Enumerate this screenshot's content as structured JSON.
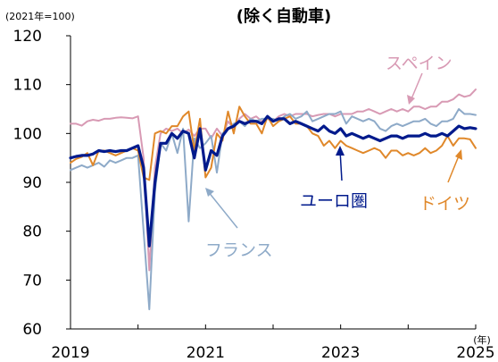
{
  "chart_data": {
    "type": "line",
    "title": "(除く自動車)",
    "unit_label": "(2021年=100)",
    "x_unit_label": "(年)",
    "x_ticks": [
      2019,
      2021,
      2023,
      2025
    ],
    "y_ticks": [
      60,
      70,
      80,
      90,
      100,
      110,
      120
    ],
    "xlim": [
      2019,
      2025
    ],
    "ylim": [
      60,
      120
    ],
    "grid": false,
    "series": [
      {
        "name": "スペイン",
        "color": "#d89ab4",
        "width": 2,
        "x": [
          2019.0,
          2019.083,
          2019.167,
          2019.25,
          2019.333,
          2019.417,
          2019.5,
          2019.583,
          2019.667,
          2019.75,
          2019.833,
          2019.917,
          2020.0,
          2020.083,
          2020.167,
          2020.25,
          2020.333,
          2020.417,
          2020.5,
          2020.583,
          2020.667,
          2020.75,
          2020.833,
          2020.917,
          2021.0,
          2021.083,
          2021.167,
          2021.25,
          2021.333,
          2021.417,
          2021.5,
          2021.583,
          2021.667,
          2021.75,
          2021.833,
          2021.917,
          2022.0,
          2022.083,
          2022.167,
          2022.25,
          2022.333,
          2022.417,
          2022.5,
          2022.583,
          2022.667,
          2022.75,
          2022.833,
          2022.917,
          2023.0,
          2023.083,
          2023.167,
          2023.25,
          2023.333,
          2023.417,
          2023.5,
          2023.583,
          2023.667,
          2023.75,
          2023.833,
          2023.917,
          2024.0,
          2024.083,
          2024.167,
          2024.25,
          2024.333,
          2024.417,
          2024.5,
          2024.583,
          2024.667,
          2024.75,
          2024.833,
          2024.917,
          2025.0
        ],
        "values": [
          102.0,
          102.0,
          101.6,
          102.5,
          102.8,
          102.6,
          103.0,
          103.0,
          103.2,
          103.3,
          103.2,
          103.1,
          103.5,
          95.0,
          72.0,
          93.0,
          100.0,
          101.0,
          100.5,
          101.0,
          100.0,
          100.8,
          99.5,
          101.0,
          101.0,
          99.0,
          101.0,
          99.5,
          102.5,
          101.0,
          103.0,
          104.0,
          103.0,
          103.5,
          102.5,
          103.0,
          102.5,
          103.5,
          104.0,
          103.5,
          104.0,
          104.0,
          104.0,
          103.5,
          103.8,
          104.0,
          104.0,
          103.5,
          104.0,
          104.0,
          104.0,
          104.5,
          104.5,
          105.0,
          104.5,
          104.0,
          104.5,
          105.0,
          104.5,
          105.0,
          104.5,
          105.5,
          105.5,
          105.0,
          105.5,
          105.5,
          106.5,
          106.5,
          107.0,
          108.0,
          107.5,
          107.8,
          109.0
        ]
      },
      {
        "name": "フランス",
        "color": "#8eaac8",
        "width": 2,
        "x": [
          2019.0,
          2019.083,
          2019.167,
          2019.25,
          2019.333,
          2019.417,
          2019.5,
          2019.583,
          2019.667,
          2019.75,
          2019.833,
          2019.917,
          2020.0,
          2020.083,
          2020.167,
          2020.25,
          2020.333,
          2020.417,
          2020.5,
          2020.583,
          2020.667,
          2020.75,
          2020.833,
          2020.917,
          2021.0,
          2021.083,
          2021.167,
          2021.25,
          2021.333,
          2021.417,
          2021.5,
          2021.583,
          2021.667,
          2021.75,
          2021.833,
          2021.917,
          2022.0,
          2022.083,
          2022.167,
          2022.25,
          2022.333,
          2022.417,
          2022.5,
          2022.583,
          2022.667,
          2022.75,
          2022.833,
          2022.917,
          2023.0,
          2023.083,
          2023.167,
          2023.25,
          2023.333,
          2023.417,
          2023.5,
          2023.583,
          2023.667,
          2023.75,
          2023.833,
          2023.917,
          2024.0,
          2024.083,
          2024.167,
          2024.25,
          2024.333,
          2024.417,
          2024.5,
          2024.583,
          2024.667,
          2024.75,
          2024.833,
          2024.917,
          2025.0
        ],
        "values": [
          92.5,
          93.0,
          93.5,
          93.0,
          93.5,
          94.0,
          93.2,
          94.5,
          94.0,
          94.5,
          95.0,
          95.0,
          95.5,
          80.0,
          64.0,
          88.0,
          98.0,
          96.5,
          100.0,
          96.0,
          101.0,
          82.0,
          99.0,
          97.0,
          98.0,
          99.5,
          92.0,
          100.0,
          101.0,
          102.0,
          102.5,
          101.5,
          103.0,
          102.5,
          103.0,
          103.0,
          103.0,
          102.5,
          103.5,
          104.0,
          103.0,
          103.5,
          104.5,
          102.5,
          103.0,
          103.5,
          104.0,
          104.0,
          104.5,
          102.0,
          103.5,
          103.0,
          102.5,
          103.0,
          102.5,
          101.0,
          100.5,
          101.5,
          102.0,
          101.5,
          102.0,
          102.5,
          102.5,
          103.0,
          102.0,
          101.5,
          102.5,
          102.5,
          103.0,
          105.0,
          104.0,
          104.0,
          103.8
        ]
      },
      {
        "name": "ドイツ",
        "color": "#e0882a",
        "width": 2,
        "x": [
          2019.0,
          2019.083,
          2019.167,
          2019.25,
          2019.333,
          2019.417,
          2019.5,
          2019.583,
          2019.667,
          2019.75,
          2019.833,
          2019.917,
          2020.0,
          2020.083,
          2020.167,
          2020.25,
          2020.333,
          2020.417,
          2020.5,
          2020.583,
          2020.667,
          2020.75,
          2020.833,
          2020.917,
          2021.0,
          2021.083,
          2021.167,
          2021.25,
          2021.333,
          2021.417,
          2021.5,
          2021.583,
          2021.667,
          2021.75,
          2021.833,
          2021.917,
          2022.0,
          2022.083,
          2022.167,
          2022.25,
          2022.333,
          2022.417,
          2022.5,
          2022.583,
          2022.667,
          2022.75,
          2022.833,
          2022.917,
          2023.0,
          2023.083,
          2023.167,
          2023.25,
          2023.333,
          2023.417,
          2023.5,
          2023.583,
          2023.667,
          2023.75,
          2023.833,
          2023.917,
          2024.0,
          2024.083,
          2024.167,
          2024.25,
          2024.333,
          2024.417,
          2024.5,
          2024.583,
          2024.667,
          2024.75,
          2024.833,
          2024.917,
          2025.0
        ],
        "values": [
          94.0,
          94.8,
          95.2,
          96.0,
          93.5,
          96.5,
          96.5,
          96.0,
          95.5,
          96.0,
          96.5,
          97.0,
          96.5,
          91.0,
          90.5,
          100.0,
          100.5,
          100.0,
          101.5,
          101.5,
          103.5,
          104.5,
          96.5,
          103.0,
          91.0,
          93.0,
          100.0,
          98.5,
          104.5,
          100.0,
          105.5,
          103.5,
          102.0,
          102.0,
          100.0,
          103.5,
          101.5,
          102.5,
          103.0,
          103.5,
          102.0,
          102.0,
          101.5,
          100.0,
          99.5,
          97.5,
          98.5,
          97.0,
          98.5,
          97.5,
          97.0,
          96.5,
          96.0,
          96.5,
          97.0,
          96.5,
          95.0,
          96.5,
          96.5,
          95.5,
          96.0,
          95.5,
          96.0,
          97.0,
          96.0,
          96.5,
          97.5,
          99.5,
          97.5,
          99.0,
          99.0,
          98.8,
          97.0
        ]
      },
      {
        "name": "ユーロ圏",
        "color": "#001a8c",
        "width": 3.2,
        "x": [
          2019.0,
          2019.083,
          2019.167,
          2019.25,
          2019.333,
          2019.417,
          2019.5,
          2019.583,
          2019.667,
          2019.75,
          2019.833,
          2019.917,
          2020.0,
          2020.083,
          2020.167,
          2020.25,
          2020.333,
          2020.417,
          2020.5,
          2020.583,
          2020.667,
          2020.75,
          2020.833,
          2020.917,
          2021.0,
          2021.083,
          2021.167,
          2021.25,
          2021.333,
          2021.417,
          2021.5,
          2021.583,
          2021.667,
          2021.75,
          2021.833,
          2021.917,
          2022.0,
          2022.083,
          2022.167,
          2022.25,
          2022.333,
          2022.417,
          2022.5,
          2022.583,
          2022.667,
          2022.75,
          2022.833,
          2022.917,
          2023.0,
          2023.083,
          2023.167,
          2023.25,
          2023.333,
          2023.417,
          2023.5,
          2023.583,
          2023.667,
          2023.75,
          2023.833,
          2023.917,
          2024.0,
          2024.083,
          2024.167,
          2024.25,
          2024.333,
          2024.417,
          2024.5,
          2024.583,
          2024.667,
          2024.75,
          2024.833,
          2024.917,
          2025.0
        ],
        "values": [
          95.0,
          95.3,
          95.5,
          95.5,
          95.8,
          96.5,
          96.3,
          96.5,
          96.3,
          96.5,
          96.5,
          97.0,
          97.5,
          93.0,
          77.0,
          90.0,
          98.0,
          98.0,
          100.0,
          99.0,
          100.5,
          100.0,
          95.0,
          101.0,
          92.5,
          96.5,
          95.5,
          99.5,
          101.0,
          101.5,
          102.5,
          102.0,
          102.5,
          102.5,
          102.0,
          103.5,
          102.5,
          103.0,
          103.0,
          102.0,
          102.5,
          102.0,
          101.5,
          101.0,
          100.5,
          101.5,
          100.5,
          100.0,
          101.0,
          99.5,
          100.0,
          99.5,
          99.0,
          99.5,
          99.0,
          98.5,
          99.0,
          99.5,
          99.5,
          99.0,
          99.5,
          99.5,
          99.5,
          100.0,
          99.5,
          99.5,
          100.0,
          99.5,
          100.5,
          101.5,
          101.0,
          101.2,
          101.0
        ]
      }
    ],
    "series_label_colors": {
      "spain": "#d89ab4",
      "france": "#8eaac8",
      "germany": "#e0882a",
      "euro": "#001a8c"
    }
  }
}
